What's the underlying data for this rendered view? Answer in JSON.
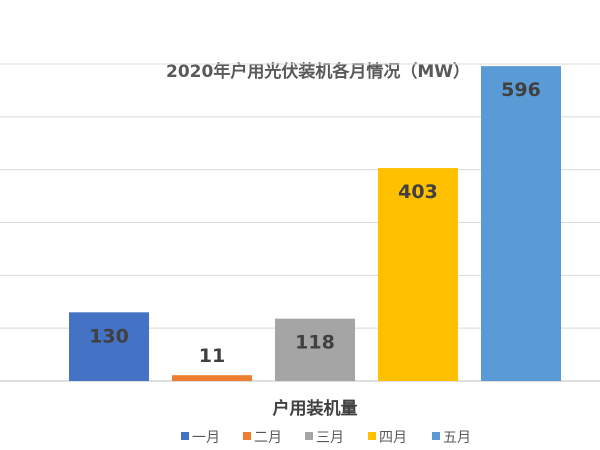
{
  "chart_data": {
    "type": "bar",
    "title": "2020年户用光伏装机各月情况（MW）",
    "xlabel": "户用装机量",
    "ylabel": "",
    "categories": [
      "户用装机量"
    ],
    "series": [
      {
        "name": "一月",
        "values": [
          130
        ],
        "color": "#4472c4"
      },
      {
        "name": "二月",
        "values": [
          11
        ],
        "color": "#ed7d31"
      },
      {
        "name": "三月",
        "values": [
          118
        ],
        "color": "#a5a5a5"
      },
      {
        "name": "四月",
        "values": [
          403
        ],
        "color": "#ffc000"
      },
      {
        "name": "五月",
        "values": [
          596
        ],
        "color": "#5b9bd5"
      }
    ],
    "ylim": [
      0,
      600
    ],
    "grid": true,
    "legend": "bottom",
    "data_labels": true
  }
}
